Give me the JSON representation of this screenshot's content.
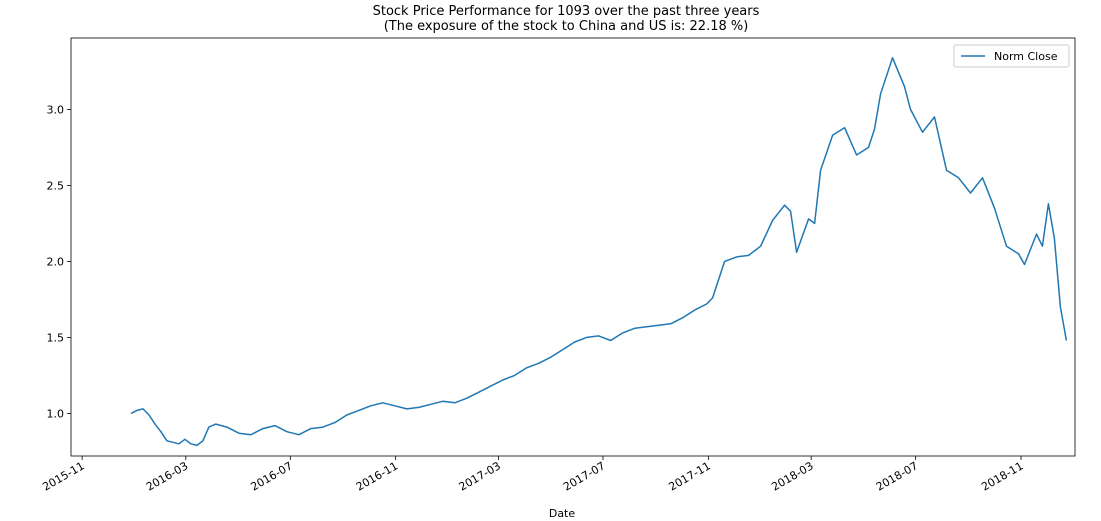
{
  "chart_data": {
    "type": "line",
    "title": "Stock Price Performance for 1093 over the past three years",
    "subtitle": "(The exposure of the stock to China and US is: 22.18 %)",
    "xlabel": "Date",
    "ylabel": "",
    "x_ticks": [
      "2015-11",
      "2016-03",
      "2016-07",
      "2016-11",
      "2017-03",
      "2017-07",
      "2017-11",
      "2018-03",
      "2018-07",
      "2018-11"
    ],
    "y_ticks": [
      "1.0",
      "1.5",
      "2.0",
      "2.5",
      "3.0"
    ],
    "xlim": [
      "2015-10-19",
      "2019-01-03"
    ],
    "ylim": [
      0.72,
      3.47
    ],
    "grid": false,
    "legend": {
      "position": "top-right",
      "entries": [
        "Norm Close"
      ]
    },
    "series": [
      {
        "name": "Norm Close",
        "color": "#1f77b4",
        "x": [
          "2015-12-28",
          "2016-01-04",
          "2016-01-11",
          "2016-01-18",
          "2016-01-25",
          "2016-02-01",
          "2016-02-08",
          "2016-02-15",
          "2016-02-22",
          "2016-02-29",
          "2016-03-07",
          "2016-03-14",
          "2016-03-21",
          "2016-03-28",
          "2016-04-05",
          "2016-04-18",
          "2016-05-02",
          "2016-05-16",
          "2016-05-30",
          "2016-06-13",
          "2016-06-27",
          "2016-07-11",
          "2016-07-25",
          "2016-08-08",
          "2016-08-22",
          "2016-09-05",
          "2016-09-19",
          "2016-10-03",
          "2016-10-17",
          "2016-10-31",
          "2016-11-14",
          "2016-11-28",
          "2016-12-12",
          "2016-12-26",
          "2017-01-09",
          "2017-01-23",
          "2017-02-06",
          "2017-02-20",
          "2017-03-06",
          "2017-03-20",
          "2017-04-03",
          "2017-04-17",
          "2017-05-01",
          "2017-05-15",
          "2017-05-29",
          "2017-06-12",
          "2017-06-26",
          "2017-07-10",
          "2017-07-24",
          "2017-08-07",
          "2017-08-21",
          "2017-09-04",
          "2017-09-18",
          "2017-10-02",
          "2017-10-16",
          "2017-10-30",
          "2017-11-06",
          "2017-11-20",
          "2017-12-04",
          "2017-12-18",
          "2018-01-01",
          "2018-01-15",
          "2018-01-29",
          "2018-02-05",
          "2018-02-12",
          "2018-02-26",
          "2018-03-05",
          "2018-03-12",
          "2018-03-26",
          "2018-04-09",
          "2018-04-23",
          "2018-05-07",
          "2018-05-14",
          "2018-05-21",
          "2018-06-04",
          "2018-06-18",
          "2018-06-25",
          "2018-07-09",
          "2018-07-23",
          "2018-08-06",
          "2018-08-20",
          "2018-09-03",
          "2018-09-17",
          "2018-10-01",
          "2018-10-15",
          "2018-10-29",
          "2018-11-05",
          "2018-11-19",
          "2018-11-26",
          "2018-12-03",
          "2018-12-10",
          "2018-12-17",
          "2018-12-24"
        ],
        "values": [
          1.0,
          1.02,
          1.03,
          0.99,
          0.93,
          0.88,
          0.82,
          0.81,
          0.8,
          0.83,
          0.8,
          0.79,
          0.82,
          0.91,
          0.93,
          0.91,
          0.87,
          0.86,
          0.9,
          0.92,
          0.88,
          0.86,
          0.9,
          0.91,
          0.94,
          0.99,
          1.02,
          1.05,
          1.07,
          1.05,
          1.03,
          1.04,
          1.06,
          1.08,
          1.07,
          1.1,
          1.14,
          1.18,
          1.22,
          1.25,
          1.3,
          1.33,
          1.37,
          1.42,
          1.47,
          1.5,
          1.51,
          1.48,
          1.53,
          1.56,
          1.57,
          1.58,
          1.59,
          1.63,
          1.68,
          1.72,
          1.76,
          2.0,
          2.03,
          2.04,
          2.1,
          2.27,
          2.37,
          2.33,
          2.06,
          2.28,
          2.25,
          2.6,
          2.83,
          2.88,
          2.7,
          2.75,
          2.87,
          3.1,
          3.34,
          3.15,
          3.0,
          2.85,
          2.95,
          2.6,
          2.55,
          2.45,
          2.55,
          2.35,
          2.1,
          2.05,
          1.98,
          2.18,
          2.1,
          2.38,
          2.15,
          1.7,
          1.48
        ]
      }
    ]
  }
}
